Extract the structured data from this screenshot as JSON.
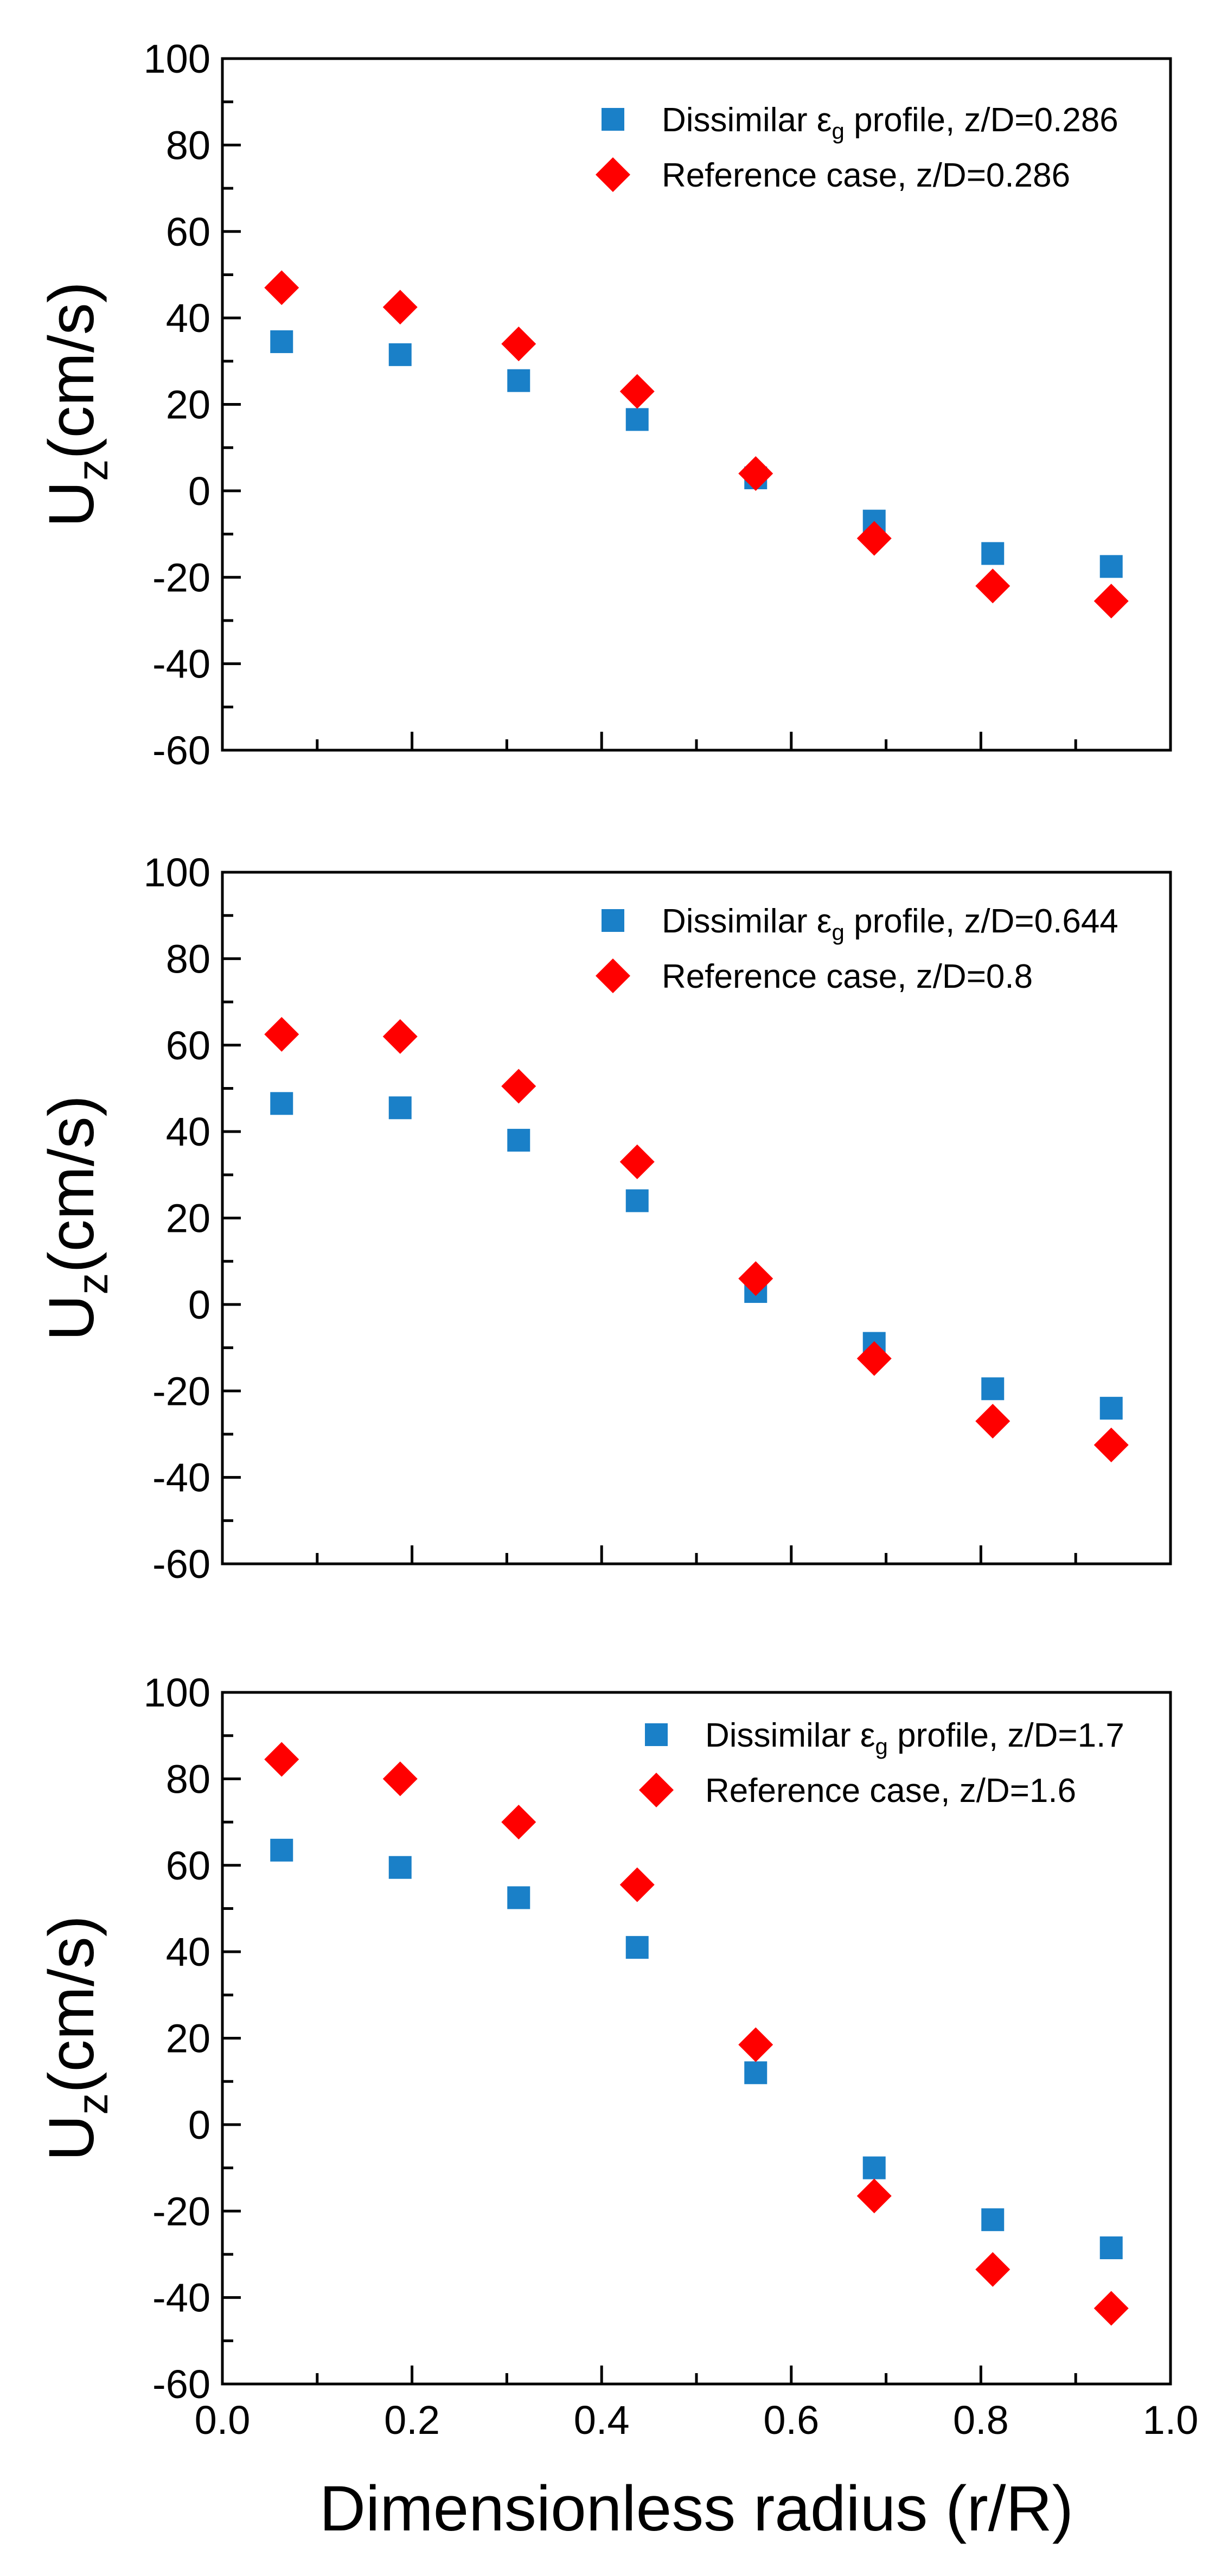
{
  "chart_data": [
    {
      "type": "scatter",
      "ylabel_main": "U",
      "ylabel_sub": "z",
      "ylabel_rest": "(cm/s)",
      "xlim": [
        0.0,
        1.0
      ],
      "ylim": [
        -60,
        100
      ],
      "y_ticks": [
        "-60",
        "-40",
        "-20",
        "0",
        "20",
        "40",
        "60",
        "80",
        "100"
      ],
      "legend_position": "top-right",
      "series": [
        {
          "name": "Dissimilar εg profile, z/D=0.286",
          "label_pre": "Dissimilar ε",
          "label_sub": "g",
          "label_post": " profile, z/D=0.286",
          "marker": "square",
          "color": "#1a80c8",
          "x": [
            0.0625,
            0.1875,
            0.3125,
            0.4375,
            0.5625,
            0.6875,
            0.8125,
            0.9375
          ],
          "y": [
            34.5,
            31.5,
            25.5,
            16.5,
            3,
            -7,
            -14.5,
            -17.5
          ]
        },
        {
          "name": "Reference case, z/D=0.286",
          "label_pre": "Reference case, z/D=0.286",
          "marker": "diamond",
          "color": "#ff0000",
          "x": [
            0.0625,
            0.1875,
            0.3125,
            0.4375,
            0.5625,
            0.6875,
            0.8125,
            0.9375
          ],
          "y": [
            47,
            42.5,
            34,
            23,
            4,
            -11,
            -22,
            -25.5
          ]
        }
      ]
    },
    {
      "type": "scatter",
      "ylabel_main": "U",
      "ylabel_sub": "z",
      "ylabel_rest": "(cm/s)",
      "xlim": [
        0.0,
        1.0
      ],
      "ylim": [
        -60,
        100
      ],
      "y_ticks": [
        "-60",
        "-40",
        "-20",
        "0",
        "20",
        "40",
        "60",
        "80",
        "100"
      ],
      "legend_position": "top-right",
      "series": [
        {
          "name": "Dissimilar εg profile, z/D=0.644",
          "label_pre": "Dissimilar ε",
          "label_sub": "g",
          "label_post": " profile, z/D=0.644",
          "marker": "square",
          "color": "#1a80c8",
          "x": [
            0.0625,
            0.1875,
            0.3125,
            0.4375,
            0.5625,
            0.6875,
            0.8125,
            0.9375
          ],
          "y": [
            46.5,
            45.5,
            38,
            24,
            3,
            -9,
            -19.5,
            -24
          ]
        },
        {
          "name": "Reference case, z/D=0.8",
          "label_pre": "Reference case, z/D=0.8",
          "marker": "diamond",
          "color": "#ff0000",
          "x": [
            0.0625,
            0.1875,
            0.3125,
            0.4375,
            0.5625,
            0.6875,
            0.8125,
            0.9375
          ],
          "y": [
            62.5,
            62,
            50.5,
            33,
            6,
            -12.5,
            -27,
            -32.5
          ]
        }
      ]
    },
    {
      "type": "scatter",
      "ylabel_main": "U",
      "ylabel_sub": "z",
      "ylabel_rest": "(cm/s)",
      "xlabel": "Dimensionless radius (r/R)",
      "xlim": [
        0.0,
        1.0
      ],
      "ylim": [
        -60,
        100
      ],
      "x_ticks": [
        "0.0",
        "0.2",
        "0.4",
        "0.6",
        "0.8",
        "1.0"
      ],
      "y_ticks": [
        "-60",
        "-40",
        "-20",
        "0",
        "20",
        "40",
        "60",
        "80",
        "100"
      ],
      "legend_position": "top-right",
      "series": [
        {
          "name": "Dissimilar εg profile, z/D=1.7",
          "label_pre": "Dissimilar ε",
          "label_sub": "g",
          "label_post": " profile, z/D=1.7",
          "marker": "square",
          "color": "#1a80c8",
          "x": [
            0.0625,
            0.1875,
            0.3125,
            0.4375,
            0.5625,
            0.6875,
            0.8125,
            0.9375
          ],
          "y": [
            63.5,
            59.5,
            52.5,
            41,
            12,
            -10,
            -22,
            -28.5
          ]
        },
        {
          "name": "Reference case, z/D=1.6",
          "label_pre": "Reference case, z/D=1.6",
          "marker": "diamond",
          "color": "#ff0000",
          "x": [
            0.0625,
            0.1875,
            0.3125,
            0.4375,
            0.5625,
            0.6875,
            0.8125,
            0.9375
          ],
          "y": [
            84.5,
            80,
            70,
            55.5,
            18.5,
            -16.5,
            -33.5,
            -42.5
          ]
        }
      ]
    }
  ]
}
